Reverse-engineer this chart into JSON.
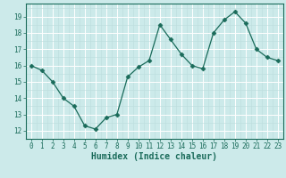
{
  "x": [
    0,
    1,
    2,
    3,
    4,
    5,
    6,
    7,
    8,
    9,
    10,
    11,
    12,
    13,
    14,
    15,
    16,
    17,
    18,
    19,
    20,
    21,
    22,
    23
  ],
  "y": [
    16.0,
    15.7,
    15.0,
    14.0,
    13.5,
    12.3,
    12.1,
    12.8,
    13.0,
    15.3,
    15.9,
    16.3,
    18.5,
    17.6,
    16.7,
    16.0,
    15.8,
    18.0,
    18.8,
    19.3,
    18.6,
    17.0,
    16.5,
    16.3
  ],
  "line_color": "#1a6b5a",
  "marker": "D",
  "marker_size": 2.5,
  "bg_color": "#cceaea",
  "grid_major_color": "#ffffff",
  "grid_minor_color": "#bbdddd",
  "xlabel": "Humidex (Indice chaleur)",
  "ylim": [
    11.5,
    19.8
  ],
  "xlim": [
    -0.5,
    23.5
  ],
  "yticks": [
    12,
    13,
    14,
    15,
    16,
    17,
    18,
    19
  ],
  "xticks": [
    0,
    1,
    2,
    3,
    4,
    5,
    6,
    7,
    8,
    9,
    10,
    11,
    12,
    13,
    14,
    15,
    16,
    17,
    18,
    19,
    20,
    21,
    22,
    23
  ],
  "tick_label_fontsize": 5.5,
  "xlabel_fontsize": 7
}
